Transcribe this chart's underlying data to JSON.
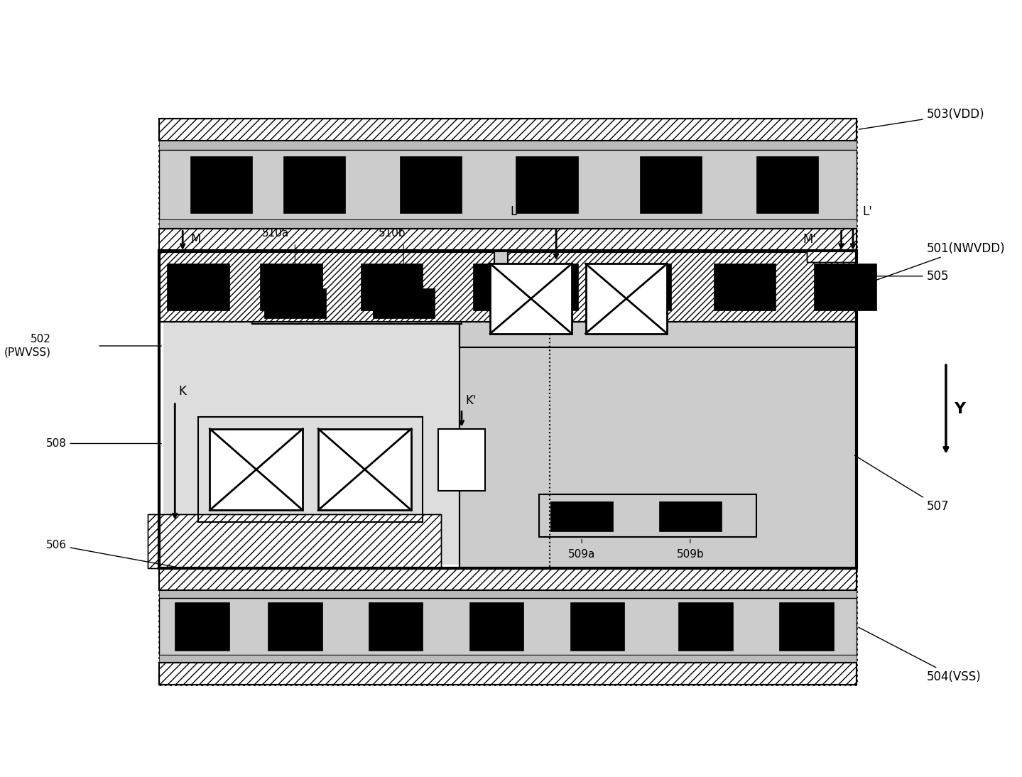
{
  "bg_color": "#ffffff",
  "fig_width": 14.39,
  "fig_height": 10.94,
  "labels": {
    "503": "503(VDD)",
    "504": "504(VSS)",
    "505": "505",
    "506": "506",
    "507": "507",
    "508": "508",
    "501": "501(NWVDD)",
    "502": "502\n(PWVSS)",
    "510a": "510a",
    "510b": "510b",
    "509a": "509a",
    "509b": "509b",
    "L": "L",
    "Lp": "L'",
    "M": "M",
    "Mp": "M'",
    "K": "K",
    "Kp": "K'",
    "Y": "Y"
  }
}
